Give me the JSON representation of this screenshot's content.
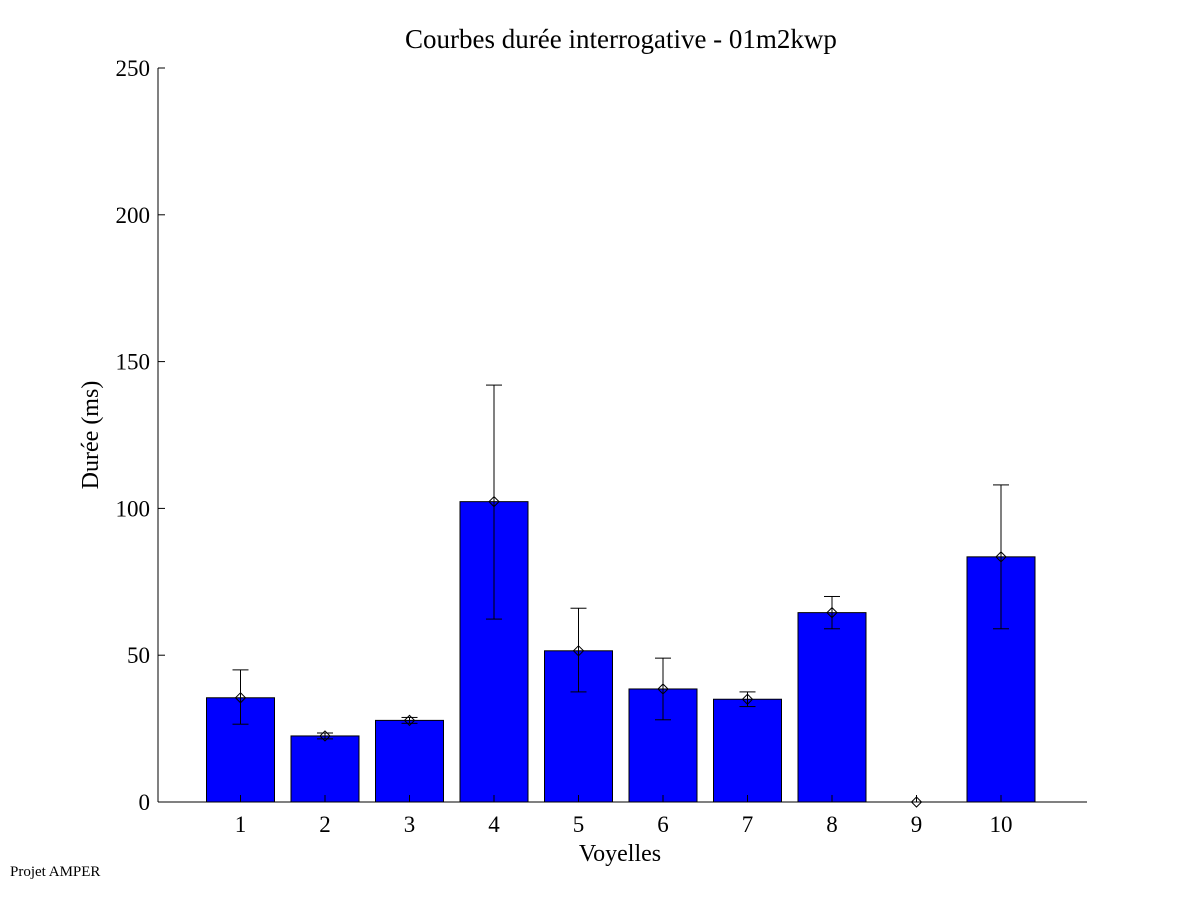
{
  "footer": {
    "label": "Projet AMPER"
  },
  "chart_data": {
    "type": "bar",
    "title": "Courbes durée interrogative - 01m2kwp",
    "xlabel": "Voyelles",
    "ylabel": "Durée (ms)",
    "categories": [
      "1",
      "2",
      "3",
      "4",
      "5",
      "6",
      "7",
      "8",
      "9",
      "10"
    ],
    "values": [
      35.5,
      22.5,
      27.8,
      102.3,
      51.5,
      38.5,
      35.0,
      64.5,
      0,
      83.5
    ],
    "error_low": [
      26.5,
      21.5,
      26.8,
      62.3,
      37.5,
      28.0,
      32.5,
      59.0,
      0,
      59.0
    ],
    "error_high": [
      45.0,
      23.5,
      28.8,
      142.0,
      66.0,
      49.0,
      37.5,
      70.0,
      0,
      108.0
    ],
    "ylim": [
      0,
      250
    ],
    "yticks": [
      "0",
      "50",
      "100",
      "150",
      "200",
      "250"
    ],
    "bar_color": "#0000ff",
    "grid": false,
    "legend": "none"
  }
}
